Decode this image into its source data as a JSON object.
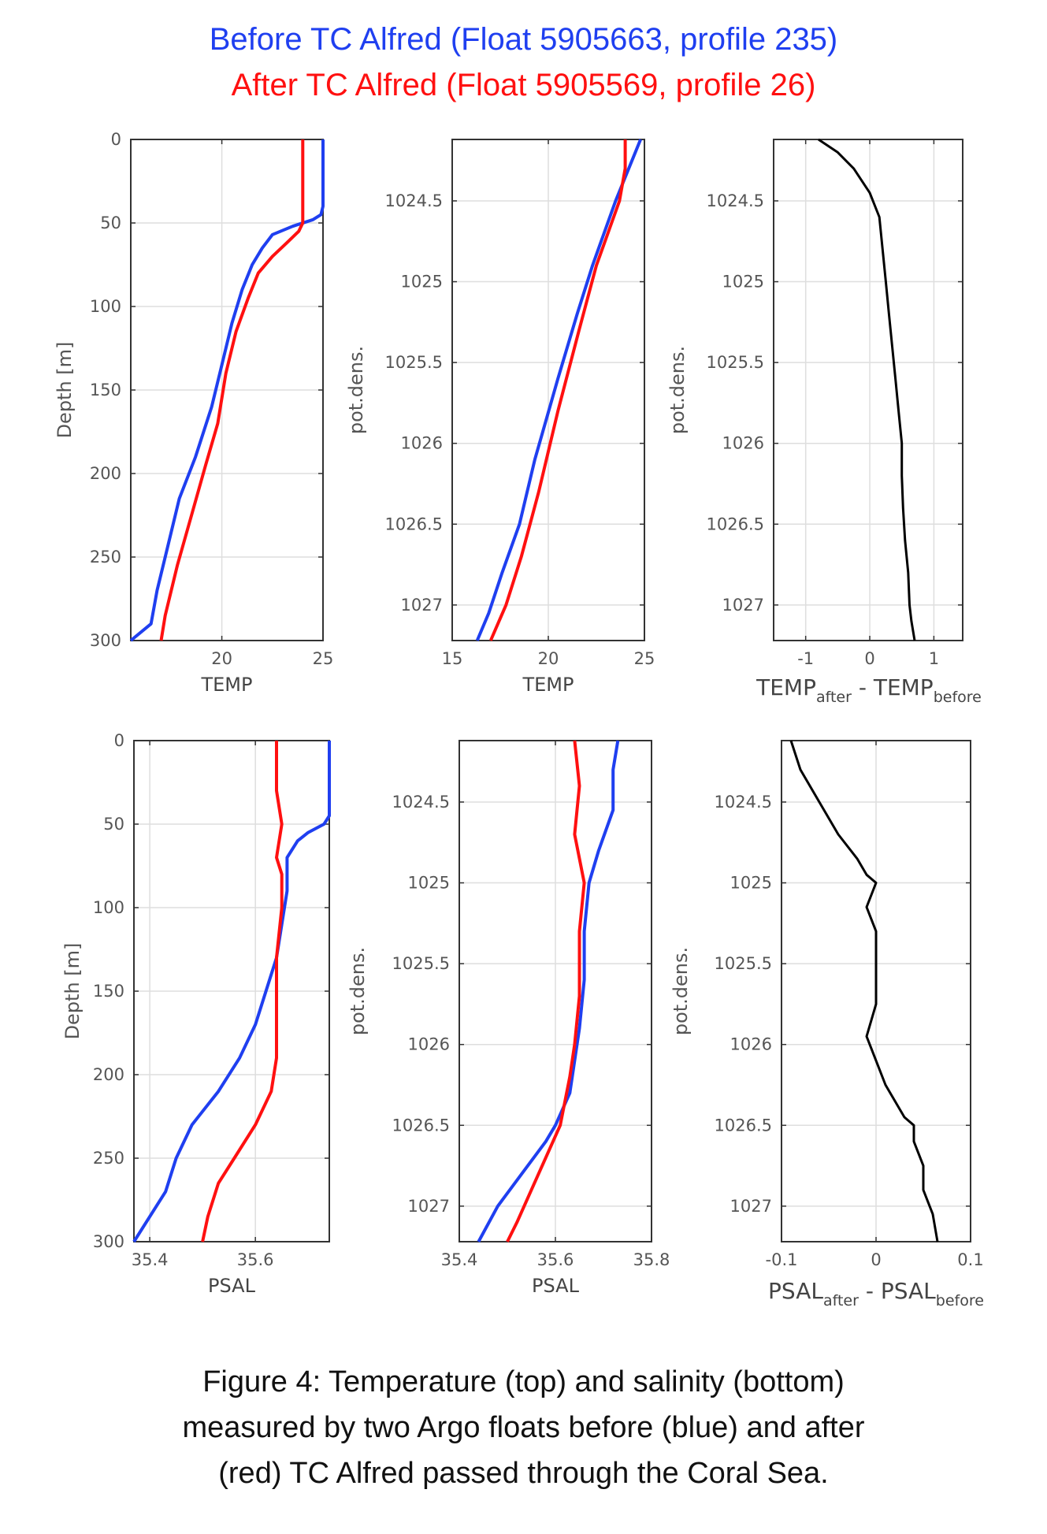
{
  "header": {
    "line1": "Before TC Alfred (Float 5905663, profile 235)",
    "line2": "After TC Alfred (Float 5905569, profile 26)"
  },
  "caption": {
    "line1": "Figure 4: Temperature (top) and salinity (bottom)",
    "line2": "measured by two Argo floats before (blue) and after",
    "line3": "(red) TC Alfred passed through the Coral Sea."
  },
  "colors": {
    "before": "#1f3ff0",
    "after": "#ff1010",
    "diff": "#000000",
    "axis": "#333333",
    "grid": "#dedede",
    "tick_text": "#555555"
  },
  "chart_data": [
    {
      "id": "temp-depth",
      "type": "line",
      "xlabel": "TEMP",
      "xlabel_sub": "",
      "xlabel2": "",
      "xlabel2_sub": "",
      "ylabel": "Depth [m]",
      "xlim": [
        15.5,
        25
      ],
      "ylim": [
        0,
        300
      ],
      "yreversed": true,
      "xticks": [
        20,
        25
      ],
      "xtick_labels": [
        "20",
        "25"
      ],
      "yticks": [
        0,
        50,
        100,
        150,
        200,
        250,
        300
      ],
      "ytick_labels": [
        "0",
        "50",
        "100",
        "150",
        "200",
        "250",
        "300"
      ],
      "grid": true,
      "series": [
        {
          "key": "before",
          "x": [
            25.0,
            25.0,
            25.0,
            24.9,
            24.5,
            23.5,
            22.5,
            22.0,
            21.5,
            21.0,
            20.5,
            20.0,
            19.5,
            18.7,
            17.9,
            17.2,
            16.8,
            16.5,
            15.5
          ],
          "y": [
            0,
            20,
            40,
            45,
            48,
            52,
            57,
            65,
            75,
            90,
            110,
            135,
            160,
            190,
            215,
            250,
            270,
            290,
            300
          ]
        },
        {
          "key": "after",
          "x": [
            24.0,
            24.0,
            24.0,
            23.8,
            23.2,
            22.5,
            21.8,
            21.3,
            20.7,
            20.2,
            19.8,
            19.2,
            18.5,
            17.8,
            17.5,
            17.2,
            17.0
          ],
          "y": [
            0,
            30,
            50,
            55,
            62,
            70,
            80,
            95,
            115,
            140,
            170,
            195,
            225,
            255,
            270,
            285,
            300
          ]
        }
      ]
    },
    {
      "id": "temp-dens",
      "type": "line",
      "xlabel": "TEMP",
      "xlabel_sub": "",
      "xlabel2": "",
      "xlabel2_sub": "",
      "ylabel": "pot.dens.",
      "xlim": [
        15,
        25
      ],
      "ylim": [
        1024.12,
        1027.22
      ],
      "yreversed": true,
      "xticks": [
        15,
        20,
        25
      ],
      "xtick_labels": [
        "15",
        "20",
        "25"
      ],
      "yticks": [
        1024.5,
        1025,
        1025.5,
        1026,
        1026.5,
        1027
      ],
      "ytick_labels": [
        "1024.5",
        "1025",
        "1025.5",
        "1026",
        "1026.5",
        "1027"
      ],
      "grid": true,
      "series": [
        {
          "key": "before",
          "x": [
            24.8,
            23.5,
            22.3,
            21.5,
            20.5,
            19.3,
            18.5,
            17.6,
            16.9,
            16.3
          ],
          "y": [
            1024.12,
            1024.5,
            1024.9,
            1025.2,
            1025.6,
            1026.1,
            1026.5,
            1026.8,
            1027.05,
            1027.22
          ]
        },
        {
          "key": "after",
          "x": [
            24.0,
            24.0,
            23.7,
            22.5,
            21.6,
            20.5,
            19.5,
            18.6,
            17.8,
            17.0
          ],
          "y": [
            1024.12,
            1024.3,
            1024.5,
            1024.9,
            1025.3,
            1025.8,
            1026.3,
            1026.7,
            1027.0,
            1027.22
          ]
        }
      ]
    },
    {
      "id": "temp-diff",
      "type": "line",
      "xlabel": "",
      "xlabel_sub": "",
      "xlabel2": "",
      "xlabel2_sub": "",
      "ylabel": "pot.dens.",
      "xlim": [
        -1.5,
        1.45
      ],
      "ylim": [
        1024.12,
        1027.22
      ],
      "yreversed": true,
      "xticks": [
        -1,
        0,
        1
      ],
      "xtick_labels": [
        "-1",
        "0",
        "1"
      ],
      "yticks": [
        1024.5,
        1025,
        1025.5,
        1026,
        1026.5,
        1027
      ],
      "ytick_labels": [
        "1024.5",
        "1025",
        "1025.5",
        "1026",
        "1026.5",
        "1027"
      ],
      "grid": true,
      "series": [
        {
          "key": "diff",
          "x": [
            -0.8,
            -0.5,
            -0.25,
            0.0,
            0.15,
            0.2,
            0.25,
            0.3,
            0.35,
            0.4,
            0.45,
            0.5,
            0.5,
            0.52,
            0.55,
            0.6,
            0.62,
            0.65,
            0.7
          ],
          "y": [
            1024.12,
            1024.2,
            1024.3,
            1024.45,
            1024.6,
            1024.8,
            1025.0,
            1025.2,
            1025.4,
            1025.6,
            1025.8,
            1026.0,
            1026.2,
            1026.4,
            1026.6,
            1026.8,
            1027.0,
            1027.1,
            1027.22
          ]
        }
      ]
    },
    {
      "id": "psal-depth",
      "type": "line",
      "xlabel": "PSAL",
      "xlabel_sub": "",
      "xlabel2": "",
      "xlabel2_sub": "",
      "ylabel": "Depth [m]",
      "xlim": [
        35.37,
        35.74
      ],
      "ylim": [
        0,
        300
      ],
      "yreversed": true,
      "xticks": [
        35.4,
        35.6
      ],
      "xtick_labels": [
        "35.4",
        "35.6"
      ],
      "yticks": [
        0,
        50,
        100,
        150,
        200,
        250,
        300
      ],
      "ytick_labels": [
        "0",
        "50",
        "100",
        "150",
        "200",
        "250",
        "300"
      ],
      "grid": true,
      "series": [
        {
          "key": "before",
          "x": [
            35.74,
            35.74,
            35.74,
            35.73,
            35.7,
            35.68,
            35.66,
            35.66,
            35.65,
            35.64,
            35.62,
            35.6,
            35.57,
            35.53,
            35.48,
            35.45,
            35.43,
            35.4,
            35.37
          ],
          "y": [
            0,
            20,
            45,
            50,
            55,
            60,
            70,
            90,
            110,
            130,
            150,
            170,
            190,
            210,
            230,
            250,
            270,
            285,
            300
          ]
        },
        {
          "key": "after",
          "x": [
            35.64,
            35.64,
            35.65,
            35.64,
            35.65,
            35.65,
            35.64,
            35.64,
            35.64,
            35.63,
            35.6,
            35.56,
            35.53,
            35.51,
            35.5
          ],
          "y": [
            0,
            30,
            50,
            70,
            80,
            100,
            130,
            160,
            190,
            210,
            230,
            250,
            265,
            285,
            300
          ]
        }
      ]
    },
    {
      "id": "psal-dens",
      "type": "line",
      "xlabel": "PSAL",
      "xlabel_sub": "",
      "xlabel2": "",
      "xlabel2_sub": "",
      "ylabel": "pot.dens.",
      "xlim": [
        35.4,
        35.8
      ],
      "ylim": [
        1024.12,
        1027.22
      ],
      "yreversed": true,
      "xticks": [
        35.4,
        35.6,
        35.8
      ],
      "xtick_labels": [
        "35.4",
        "35.6",
        "35.8"
      ],
      "yticks": [
        1024.5,
        1025,
        1025.5,
        1026,
        1026.5,
        1027
      ],
      "ytick_labels": [
        "1024.5",
        "1025",
        "1025.5",
        "1026",
        "1026.5",
        "1027"
      ],
      "grid": true,
      "series": [
        {
          "key": "before",
          "x": [
            35.73,
            35.72,
            35.72,
            35.69,
            35.67,
            35.66,
            35.66,
            35.65,
            35.64,
            35.63,
            35.6,
            35.58,
            35.53,
            35.48,
            35.44
          ],
          "y": [
            1024.12,
            1024.3,
            1024.55,
            1024.8,
            1025.0,
            1025.3,
            1025.6,
            1025.9,
            1026.1,
            1026.3,
            1026.5,
            1026.6,
            1026.8,
            1027.0,
            1027.22
          ]
        },
        {
          "key": "after",
          "x": [
            35.64,
            35.65,
            35.64,
            35.66,
            35.65,
            35.65,
            35.64,
            35.63,
            35.61,
            35.58,
            35.55,
            35.52,
            35.5
          ],
          "y": [
            1024.12,
            1024.4,
            1024.7,
            1025.0,
            1025.3,
            1025.7,
            1026.0,
            1026.2,
            1026.5,
            1026.7,
            1026.9,
            1027.1,
            1027.22
          ]
        }
      ]
    },
    {
      "id": "psal-diff",
      "type": "line",
      "xlabel": "",
      "xlabel_sub": "",
      "xlabel2": "",
      "xlabel2_sub": "",
      "ylabel": "pot.dens.",
      "xlim": [
        -0.1,
        0.1
      ],
      "ylim": [
        1024.12,
        1027.22
      ],
      "yreversed": true,
      "xticks": [
        -0.1,
        0,
        0.1
      ],
      "xtick_labels": [
        "-0.1",
        "0",
        "0.1"
      ],
      "yticks": [
        1024.5,
        1025,
        1025.5,
        1026,
        1026.5,
        1027
      ],
      "ytick_labels": [
        "1024.5",
        "1025",
        "1025.5",
        "1026",
        "1026.5",
        "1027"
      ],
      "grid": true,
      "series": [
        {
          "key": "diff",
          "x": [
            -0.09,
            -0.08,
            -0.06,
            -0.04,
            -0.02,
            -0.01,
            0.0,
            -0.01,
            0.0,
            0.0,
            0.0,
            -0.01,
            0.0,
            0.01,
            0.02,
            0.03,
            0.04,
            0.04,
            0.05,
            0.05,
            0.06,
            0.065
          ],
          "y": [
            1024.12,
            1024.3,
            1024.5,
            1024.7,
            1024.85,
            1024.95,
            1025.0,
            1025.15,
            1025.3,
            1025.5,
            1025.75,
            1025.95,
            1026.1,
            1026.25,
            1026.35,
            1026.45,
            1026.5,
            1026.6,
            1026.75,
            1026.9,
            1027.05,
            1027.22
          ]
        }
      ]
    }
  ],
  "bottom_labels": {
    "temp_diff": {
      "a": "TEMP",
      "a_sub": "after",
      "b": " - TEMP",
      "b_sub": "before"
    },
    "psal_diff": {
      "a": "PSAL",
      "a_sub": "after",
      "b": " - PSAL",
      "b_sub": "before"
    }
  }
}
